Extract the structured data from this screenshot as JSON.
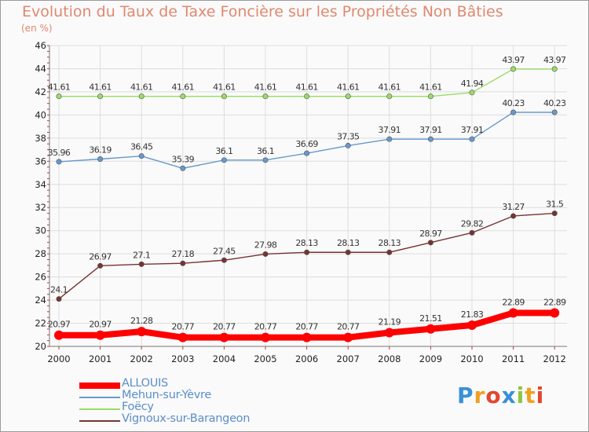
{
  "title": "Evolution du Taux de Taxe Foncière sur les Propriétés Non Bâties",
  "unit": "(en %)",
  "logo": "Proxiti",
  "chart_data": {
    "type": "line",
    "x": [
      "2000",
      "2001",
      "2002",
      "2003",
      "2004",
      "2005",
      "2006",
      "2007",
      "2008",
      "2009",
      "2010",
      "2011",
      "2012"
    ],
    "ylim": [
      20,
      46
    ],
    "yticks": [
      20,
      22,
      24,
      26,
      28,
      30,
      32,
      34,
      36,
      38,
      40,
      42,
      44,
      46
    ],
    "grid": true,
    "legend_position": "bottom-left",
    "series": [
      {
        "name": "ALLOUIS",
        "color": "#ff0000",
        "labels": [
          "20.97",
          "20.97",
          "21.28",
          "20.77",
          "20.77",
          "20.77",
          "20.77",
          "20.77",
          "21.19",
          "21.51",
          "21.83",
          "22.89",
          "22.89"
        ],
        "values": [
          20.97,
          20.97,
          21.28,
          20.77,
          20.77,
          20.77,
          20.77,
          20.77,
          21.19,
          21.51,
          21.83,
          22.89,
          22.89
        ]
      },
      {
        "name": "Mehun-sur-Yèvre",
        "color": "#6699cc",
        "labels": [
          "35.96",
          "36.19",
          "36.45",
          "35.39",
          "36.1",
          "36.1",
          "36.69",
          "37.35",
          "37.91",
          "37.91",
          "37.91",
          "40.23",
          "40.23"
        ],
        "values": [
          35.96,
          36.19,
          36.45,
          35.39,
          36.1,
          36.1,
          36.69,
          37.35,
          37.91,
          37.91,
          37.91,
          40.23,
          40.23
        ]
      },
      {
        "name": "Foëcy",
        "color": "#99dd66",
        "labels": [
          "41.61",
          "41.61",
          "41.61",
          "41.61",
          "41.61",
          "41.61",
          "41.61",
          "41.61",
          "41.61",
          "41.61",
          "41.94",
          "43.97",
          "43.97"
        ],
        "values": [
          41.61,
          41.61,
          41.61,
          41.61,
          41.61,
          41.61,
          41.61,
          41.61,
          41.61,
          41.61,
          41.94,
          43.97,
          43.97
        ]
      },
      {
        "name": "Vignoux-sur-Barangeon",
        "color": "#773333",
        "labels": [
          "24.1",
          "26.97",
          "27.1",
          "27.18",
          "27.45",
          "27.98",
          "28.13",
          "28.13",
          "28.13",
          "28.97",
          "29.82",
          "31.27",
          "31.5"
        ],
        "values": [
          24.1,
          26.97,
          27.1,
          27.18,
          27.45,
          27.98,
          28.13,
          28.13,
          28.13,
          28.97,
          29.82,
          31.27,
          31.5
        ]
      }
    ]
  }
}
